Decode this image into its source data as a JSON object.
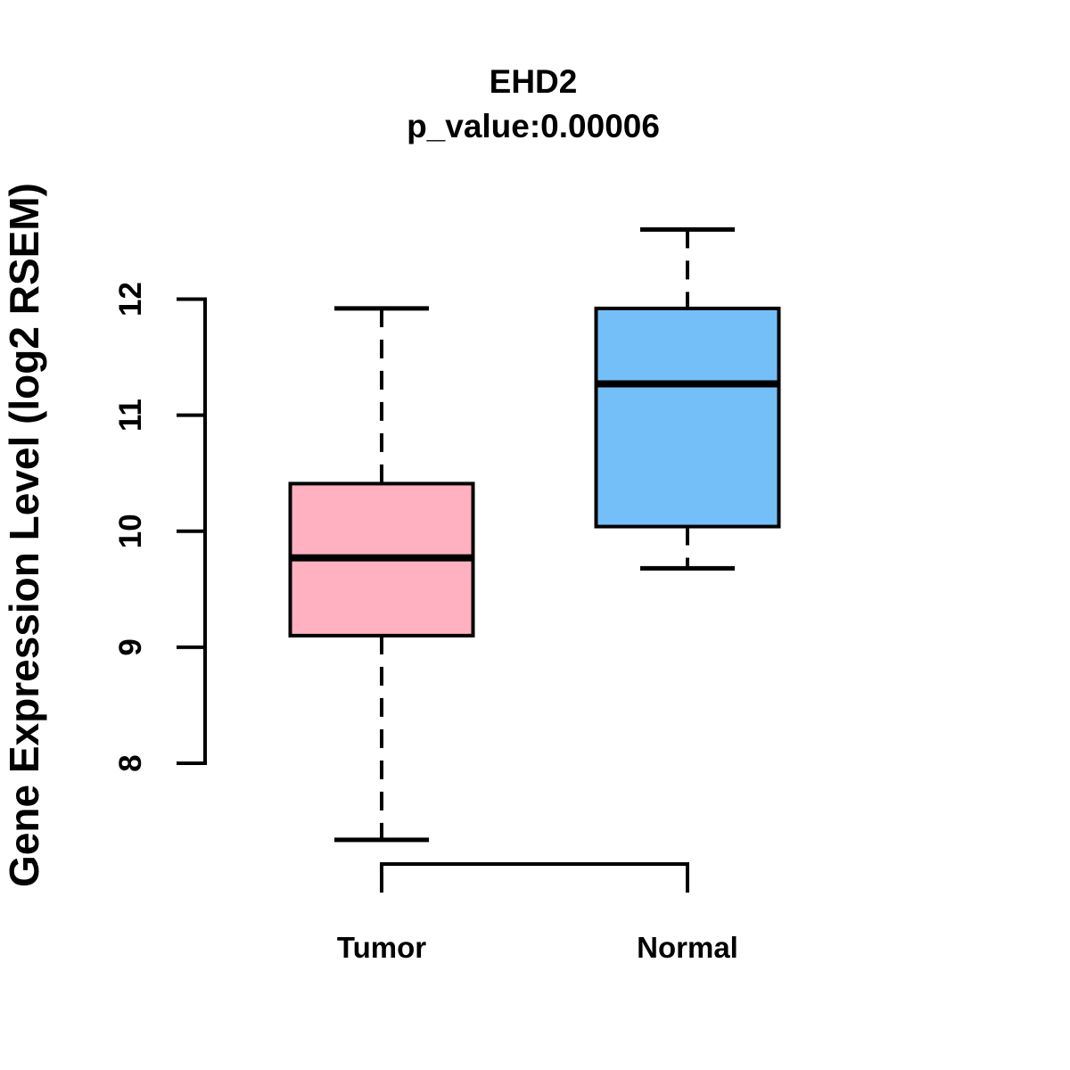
{
  "chart_data": {
    "type": "boxplot",
    "title": "EHD2",
    "subtitle": "p_value:0.00006",
    "p_value": "0.00006",
    "ylabel": "Gene Expression Level (log2 RSEM)",
    "categories": [
      "Tumor",
      "Normal"
    ],
    "yticks": [
      8,
      9,
      10,
      11,
      12
    ],
    "ylim": [
      7.1,
      12.8
    ],
    "grid": false,
    "legend": false,
    "series": [
      {
        "name": "Tumor",
        "color": "#FFB0C1",
        "stats": {
          "whisker_low": 7.34,
          "q1": 9.1,
          "median": 9.77,
          "q3": 10.41,
          "whisker_high": 11.92
        }
      },
      {
        "name": "Normal",
        "color": "#74BFF8",
        "stats": {
          "whisker_low": 9.68,
          "q1": 10.04,
          "median": 11.27,
          "q3": 11.92,
          "whisker_high": 12.6
        }
      }
    ],
    "colors": {
      "tumor_fill": "#FFB0C1",
      "normal_fill": "#74BFF8",
      "line": "#000000",
      "background": "#FFFFFF"
    }
  }
}
